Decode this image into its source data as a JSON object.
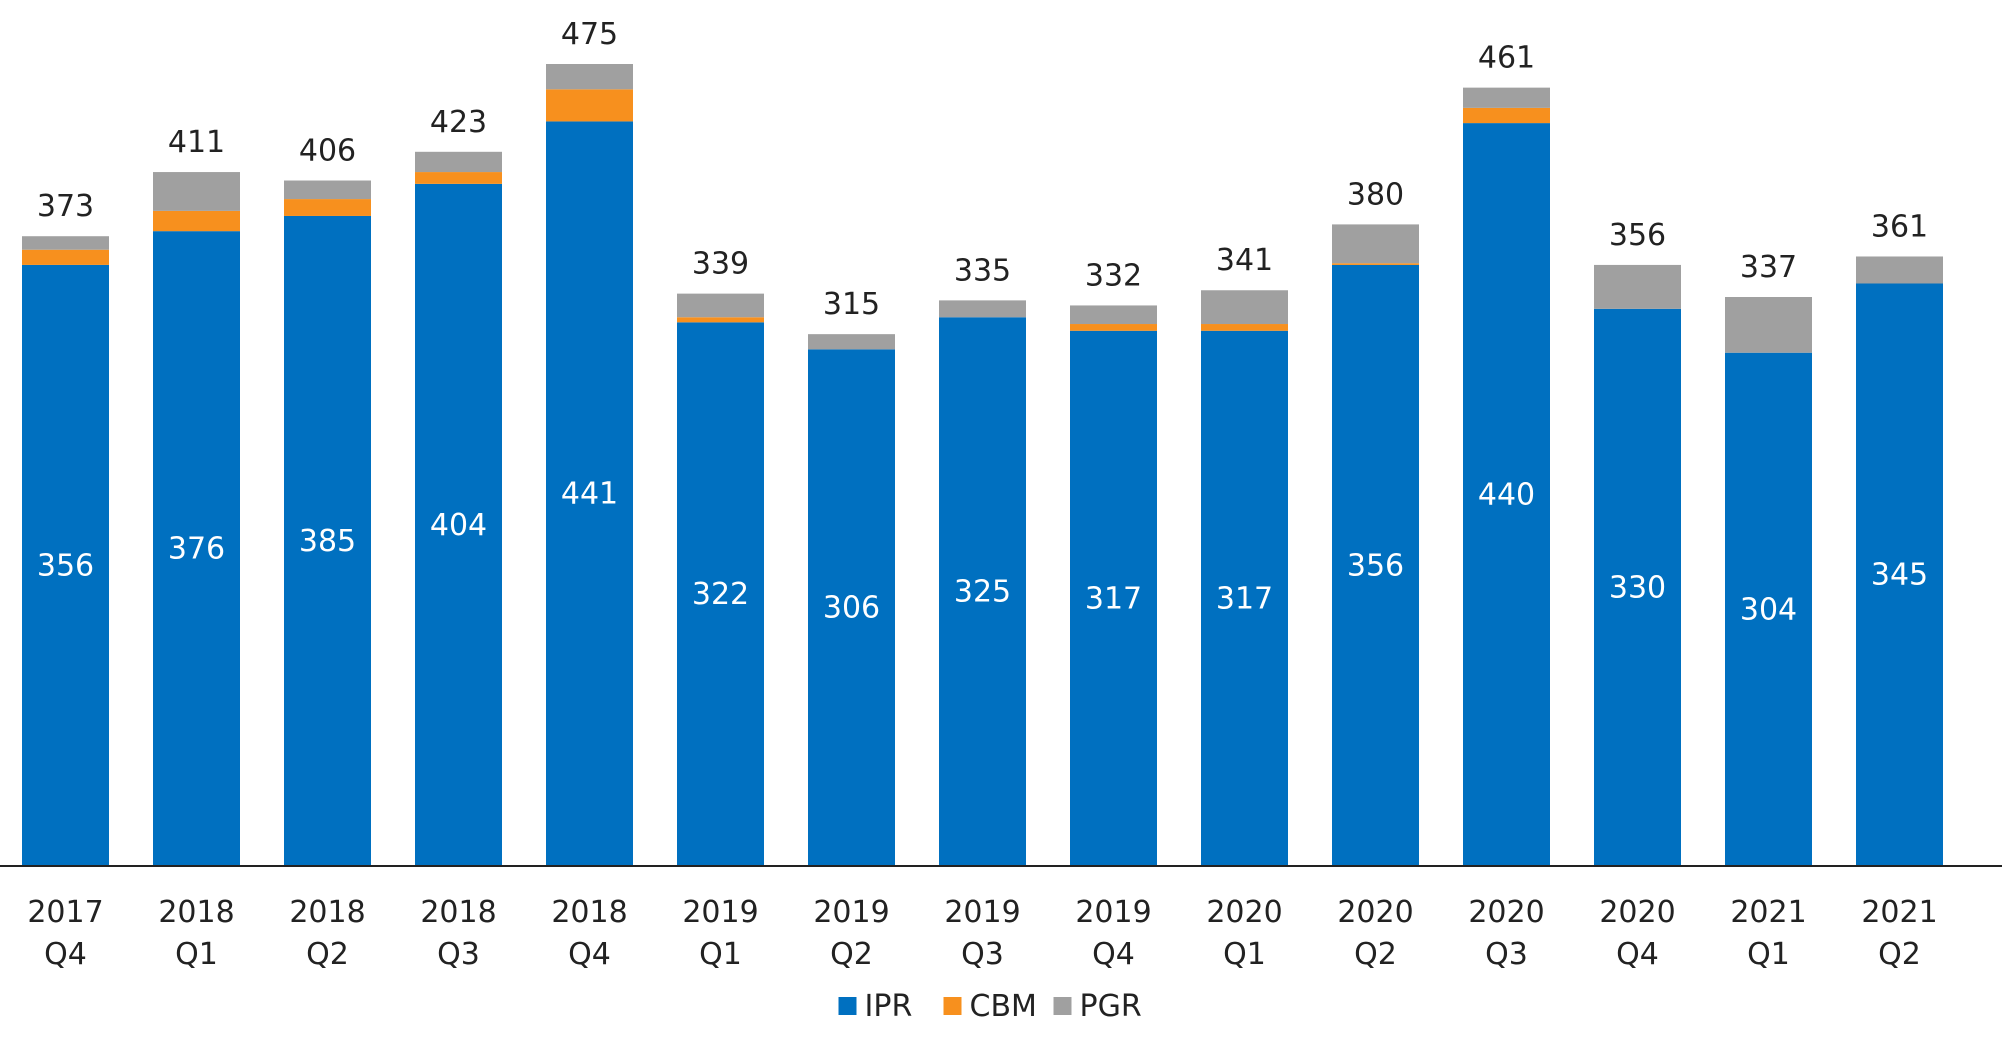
{
  "chart_data": {
    "type": "bar",
    "stacked": true,
    "title": "",
    "xlabel": "",
    "ylabel": "",
    "ylim": [
      0,
      475
    ],
    "grid": false,
    "legend_position": "bottom",
    "categories": [
      [
        "2017",
        "Q4"
      ],
      [
        "2018",
        "Q1"
      ],
      [
        "2018",
        "Q2"
      ],
      [
        "2018",
        "Q3"
      ],
      [
        "2018",
        "Q4"
      ],
      [
        "2019",
        "Q1"
      ],
      [
        "2019",
        "Q2"
      ],
      [
        "2019",
        "Q3"
      ],
      [
        "2019",
        "Q4"
      ],
      [
        "2020",
        "Q1"
      ],
      [
        "2020",
        "Q2"
      ],
      [
        "2020",
        "Q3"
      ],
      [
        "2020",
        "Q4"
      ],
      [
        "2021",
        "Q1"
      ],
      [
        "2021",
        "Q2"
      ]
    ],
    "series": [
      {
        "name": "IPR",
        "color": "#0070C0",
        "values": [
          356,
          376,
          385,
          404,
          441,
          322,
          306,
          325,
          317,
          317,
          356,
          440,
          330,
          304,
          345
        ]
      },
      {
        "name": "CBM",
        "color": "#F7901E",
        "values": [
          9,
          12,
          10,
          7,
          19,
          3,
          0,
          0,
          4,
          4,
          1,
          9,
          0,
          0,
          0
        ]
      },
      {
        "name": "PGR",
        "color": "#A0A0A0",
        "values": [
          8,
          23,
          11,
          12,
          15,
          14,
          9,
          10,
          11,
          20,
          23,
          12,
          26,
          33,
          16
        ]
      }
    ],
    "totals": [
      373,
      411,
      406,
      423,
      475,
      339,
      315,
      335,
      332,
      341,
      380,
      461,
      356,
      337,
      361
    ]
  }
}
